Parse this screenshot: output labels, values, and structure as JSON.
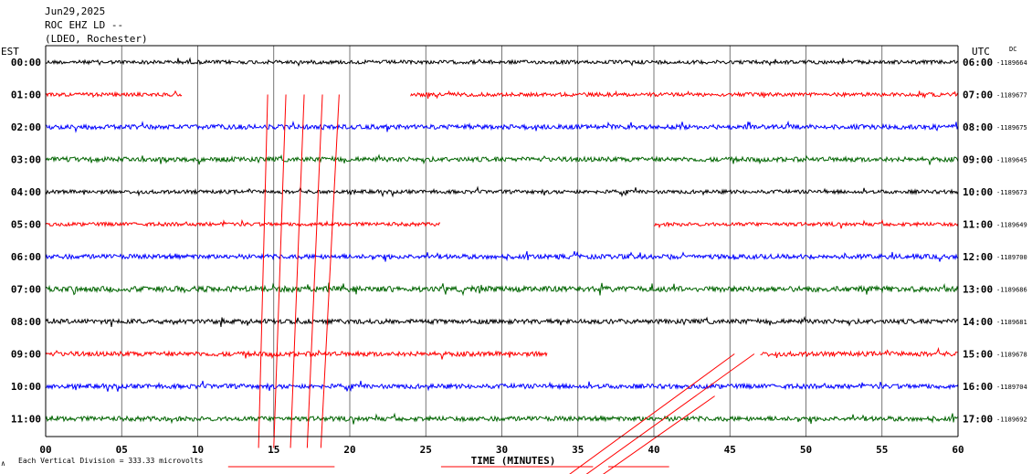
{
  "header": {
    "date": "Jun29,2025",
    "station": "ROC EHZ LD --",
    "network": "(LDEO, Rochester)"
  },
  "left_zone": "EST",
  "right_zone": "UTC",
  "dc_label": "DC",
  "footer": {
    "scale": "Each Vertical Division =  333.33 microvolts",
    "marker": "∧"
  },
  "chart_data": {
    "type": "line",
    "title": "",
    "xlabel": "TIME (MINUTES)",
    "ylabel": "",
    "xlim": [
      0,
      60
    ],
    "xticks": [
      0,
      5,
      10,
      15,
      20,
      25,
      30,
      35,
      40,
      45,
      50,
      55,
      60
    ],
    "xtick_labels": [
      "00",
      "05",
      "10",
      "15",
      "20",
      "25",
      "30",
      "35",
      "40",
      "45",
      "50",
      "55",
      "60"
    ],
    "minor_gridlines_every_minutes": 5,
    "trace_colors": [
      "#000000",
      "#ff0000",
      "#0000ff",
      "#006400"
    ],
    "rows": [
      {
        "est": "00:00",
        "utc": "06:00",
        "dc": "-1189664",
        "color": "#000000",
        "segments": [
          [
            0,
            60
          ]
        ],
        "amplitude": 2
      },
      {
        "est": "01:00",
        "utc": "07:00",
        "dc": "-1189677",
        "color": "#ff0000",
        "segments": [
          [
            0,
            9
          ],
          [
            24,
            60
          ]
        ],
        "amplitude": 2
      },
      {
        "est": "02:00",
        "utc": "08:00",
        "dc": "-1189675",
        "color": "#0000ff",
        "segments": [
          [
            0,
            60
          ]
        ],
        "amplitude": 2.5
      },
      {
        "est": "03:00",
        "utc": "09:00",
        "dc": "-1189645",
        "color": "#006400",
        "segments": [
          [
            0,
            60
          ]
        ],
        "amplitude": 2.5
      },
      {
        "est": "04:00",
        "utc": "10:00",
        "dc": "-1189673",
        "color": "#000000",
        "segments": [
          [
            0,
            60
          ]
        ],
        "amplitude": 2
      },
      {
        "est": "05:00",
        "utc": "11:00",
        "dc": "-1189649",
        "color": "#ff0000",
        "segments": [
          [
            0,
            26
          ],
          [
            40,
            60
          ]
        ],
        "amplitude": 2
      },
      {
        "est": "06:00",
        "utc": "12:00",
        "dc": "-1189700",
        "color": "#0000ff",
        "segments": [
          [
            0,
            60
          ]
        ],
        "amplitude": 2.5
      },
      {
        "est": "07:00",
        "utc": "13:00",
        "dc": "-1189686",
        "color": "#006400",
        "segments": [
          [
            0,
            60
          ]
        ],
        "amplitude": 3
      },
      {
        "est": "08:00",
        "utc": "14:00",
        "dc": "-1189681",
        "color": "#000000",
        "segments": [
          [
            0,
            60
          ]
        ],
        "amplitude": 2.5
      },
      {
        "est": "09:00",
        "utc": "15:00",
        "dc": "-1189678",
        "color": "#ff0000",
        "segments": [
          [
            0,
            33
          ],
          [
            47,
            60
          ]
        ],
        "amplitude": 2.5
      },
      {
        "est": "10:00",
        "utc": "16:00",
        "dc": "-1189704",
        "color": "#0000ff",
        "segments": [
          [
            0,
            60
          ]
        ],
        "amplitude": 2.5
      },
      {
        "est": "11:00",
        "utc": "17:00",
        "dc": "-1189692",
        "color": "#006400",
        "segments": [
          [
            0,
            60
          ]
        ],
        "amplitude": 2.5
      }
    ],
    "crossing_traces": [
      {
        "color": "#ff0000",
        "from": {
          "row": 1,
          "minute": 14.6
        },
        "to": {
          "row": 11.9,
          "minute": 14.0
        }
      },
      {
        "color": "#ff0000",
        "from": {
          "row": 1,
          "minute": 15.8
        },
        "to": {
          "row": 11.9,
          "minute": 15.0
        }
      },
      {
        "color": "#ff0000",
        "from": {
          "row": 1,
          "minute": 17.0
        },
        "to": {
          "row": 11.9,
          "minute": 16.1
        }
      },
      {
        "color": "#ff0000",
        "from": {
          "row": 1,
          "minute": 18.2
        },
        "to": {
          "row": 11.9,
          "minute": 17.2
        }
      },
      {
        "color": "#ff0000",
        "from": {
          "row": 1,
          "minute": 19.3
        },
        "to": {
          "row": 11.9,
          "minute": 18.1
        }
      },
      {
        "color": "#ff0000",
        "from": {
          "row": 9,
          "minute": 45.3
        },
        "to": {
          "row": 12.8,
          "minute": 34.2
        }
      },
      {
        "color": "#ff0000",
        "from": {
          "row": 9,
          "minute": 46.6
        },
        "to": {
          "row": 12.8,
          "minute": 35.3
        }
      },
      {
        "color": "#ff0000",
        "from": {
          "row": 10.3,
          "minute": 44.0
        },
        "to": {
          "row": 12.8,
          "minute": 36.4
        }
      }
    ],
    "bottom_red_segments": [
      [
        12,
        19
      ],
      [
        26,
        36
      ],
      [
        37,
        41
      ]
    ]
  }
}
